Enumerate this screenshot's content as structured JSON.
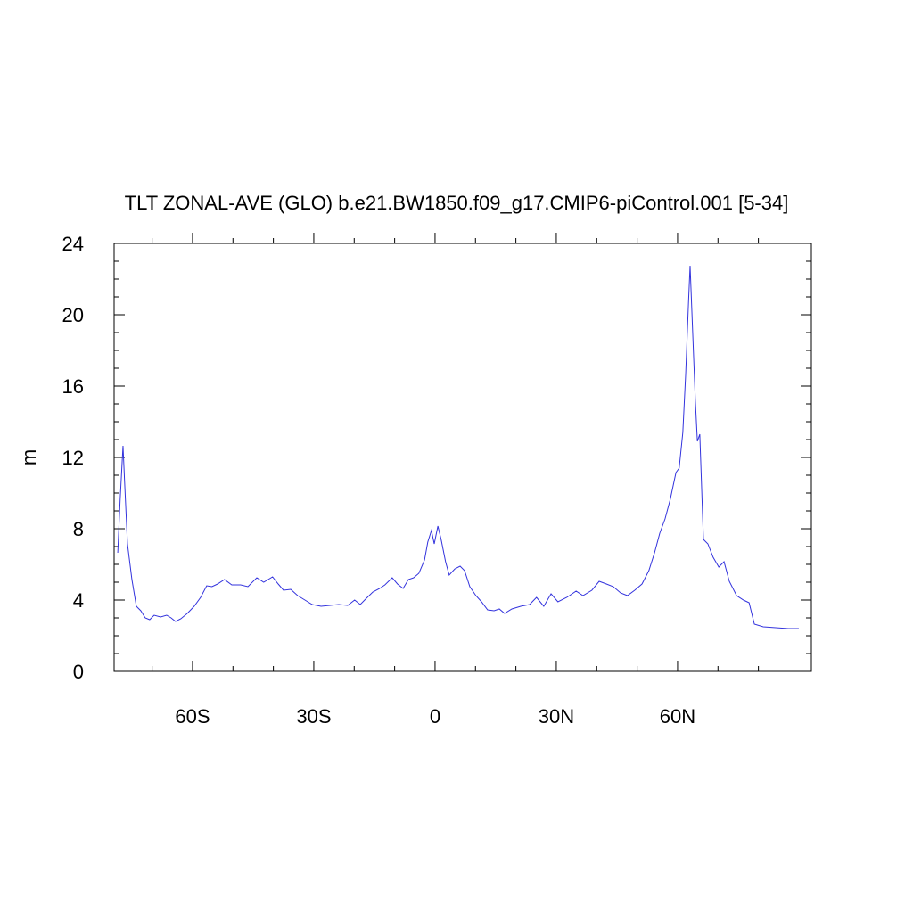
{
  "chart_data": {
    "type": "line",
    "title": "TLT ZONAL-AVE (GLO) b.e21.BW1850.f09_g17.CMIP6-piControl.001 [5-34]",
    "ylabel": "m",
    "x": [
      -78.5,
      -77.9,
      -77.2,
      -76.8,
      -76.1,
      -75,
      -73.9,
      -72.8,
      -71.7,
      -70.6,
      -69.5,
      -67.9,
      -66.4,
      -65.3,
      -64.2,
      -62.9,
      -61.3,
      -59.6,
      -58,
      -56.5,
      -55.2,
      -53.8,
      -52.1,
      -50.3,
      -48.1,
      -46.3,
      -44.1,
      -42.4,
      -40.2,
      -38.8,
      -37.5,
      -35.7,
      -34,
      -32.2,
      -30.4,
      -28.2,
      -26,
      -23.8,
      -21.6,
      -19.9,
      -18.5,
      -17.2,
      -15.4,
      -13.7,
      -12.4,
      -10.6,
      -9.3,
      -7.9,
      -6.6,
      -5.3,
      -4,
      -2.6,
      -1.8,
      -0.9,
      -0.2,
      0.7,
      1.5,
      2.6,
      3.5,
      4.9,
      6.2,
      7.3,
      8.6,
      10.1,
      11.5,
      13,
      14.6,
      15.9,
      17.2,
      19,
      21.2,
      23.4,
      25.1,
      26.9,
      28.7,
      30.4,
      32.6,
      34.9,
      36.6,
      38.8,
      40.6,
      42.4,
      44.1,
      45.9,
      47.6,
      49.4,
      51.2,
      52.9,
      54.3,
      55.6,
      56.9,
      58.2,
      59.6,
      60.4,
      61.3,
      62,
      62.7,
      63.1,
      63.8,
      64.4,
      64.9,
      65.5,
      66.4,
      67.5,
      68.8,
      70.2,
      71.5,
      72.8,
      74.6,
      76.3,
      77.7,
      79,
      81.2,
      84.3,
      87.4,
      90
    ],
    "series": [
      {
        "color": "#3333dd",
        "values": [
          6.65,
          9.65,
          12.65,
          10.6,
          7.15,
          5.15,
          3.65,
          3.4,
          3.0,
          2.9,
          3.15,
          3.05,
          3.15,
          3.0,
          2.8,
          2.95,
          3.25,
          3.65,
          4.15,
          4.8,
          4.75,
          4.9,
          5.15,
          4.85,
          4.85,
          4.75,
          5.25,
          5.0,
          5.3,
          4.9,
          4.55,
          4.6,
          4.25,
          4.0,
          3.75,
          3.65,
          3.7,
          3.75,
          3.7,
          4.0,
          3.75,
          4.05,
          4.45,
          4.65,
          4.85,
          5.25,
          4.9,
          4.65,
          5.15,
          5.25,
          5.5,
          6.25,
          7.25,
          7.9,
          7.15,
          8.15,
          7.4,
          6.15,
          5.4,
          5.75,
          5.9,
          5.65,
          4.75,
          4.25,
          3.9,
          3.45,
          3.4,
          3.5,
          3.25,
          3.5,
          3.65,
          3.75,
          4.15,
          3.65,
          4.35,
          3.9,
          4.15,
          4.5,
          4.25,
          4.55,
          5.05,
          4.9,
          4.75,
          4.4,
          4.25,
          4.55,
          4.9,
          5.65,
          6.65,
          7.75,
          8.55,
          9.65,
          11.15,
          11.4,
          13.4,
          16.65,
          20.65,
          22.75,
          18.65,
          15.15,
          12.9,
          13.3,
          7.4,
          7.15,
          6.4,
          5.85,
          6.15,
          5.05,
          4.25,
          4.0,
          3.85,
          2.65,
          2.5,
          2.45,
          2.4,
          2.4
        ]
      }
    ],
    "xlim": [
      -79.4,
      93.1
    ],
    "ylim": [
      0,
      24
    ],
    "xticks": [
      {
        "value": -60,
        "label": "60S"
      },
      {
        "value": -30,
        "label": "30S"
      },
      {
        "value": 0,
        "label": "0"
      },
      {
        "value": 30,
        "label": "30N"
      },
      {
        "value": 60,
        "label": "60N"
      }
    ],
    "xminorticks": [
      -70,
      -50,
      -40,
      -20,
      -10,
      10,
      20,
      40,
      50,
      70,
      80
    ],
    "yticks": [
      0,
      4,
      8,
      12,
      16,
      20,
      24
    ],
    "yminorticks": [
      1,
      2,
      3,
      5,
      6,
      7,
      9,
      10,
      11,
      13,
      14,
      15,
      17,
      18,
      19,
      21,
      22,
      23
    ]
  }
}
